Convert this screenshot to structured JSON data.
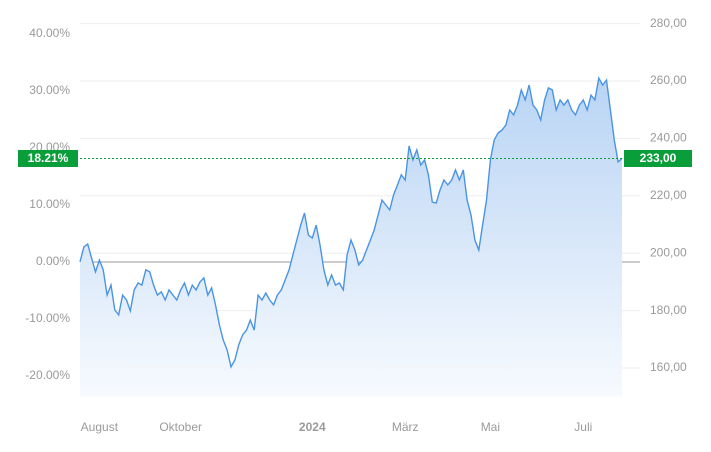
{
  "chart_data": {
    "type": "line",
    "series": [
      {
        "color": "#4a94e4",
        "axis": "y2",
        "values": [
          197,
          202.2,
          203.2,
          198.3,
          193.5,
          197.6,
          194.2,
          185.4,
          188.9,
          180.2,
          178.5,
          185.4,
          183.7,
          179.9,
          187.2,
          189.6,
          188.9,
          194.2,
          193.5,
          188.9,
          185.4,
          186.5,
          183.7,
          187.2,
          185.4,
          183.7,
          187.2,
          189.6,
          185.4,
          188.9,
          187.2,
          190,
          191.4,
          185.4,
          187.9,
          182,
          175,
          169.8,
          166.3,
          160.4,
          162.8,
          168,
          171.5,
          173.2,
          176.7,
          173.2,
          185.4,
          183.7,
          186.1,
          183.7,
          182,
          185.4,
          187.2,
          190.7,
          194.2,
          199.4,
          204.6,
          209.8,
          214,
          206.3,
          205.3,
          209.8,
          202.9,
          194.2,
          188.9,
          192.4,
          188.9,
          189.6,
          187.2,
          199.4,
          204.6,
          201.1,
          195.9,
          197.6,
          201.1,
          204.6,
          208.1,
          213.3,
          218.5,
          216.8,
          215.1,
          220.3,
          223.8,
          227.3,
          225.5,
          237.4,
          232.5,
          236,
          230.7,
          232.5,
          227.3,
          217.8,
          217.5,
          222,
          225.5,
          223.8,
          225.5,
          229,
          225.5,
          229,
          218.5,
          213.3,
          204.6,
          201.1,
          209.8,
          218.5,
          232.5,
          239.4,
          241.9,
          242.9,
          244.7,
          249.9,
          248.2,
          251.6,
          256.9,
          253.4,
          258.6,
          251.6,
          249.9,
          246.4,
          253.4,
          257.6,
          256.9,
          249.9,
          253.4,
          251.6,
          253.4,
          249.9,
          248.2,
          251.6,
          253.4,
          249.9,
          255.1,
          253.4,
          261,
          258.6,
          260.3,
          249.9,
          239.4,
          231.8,
          233
        ]
      }
    ],
    "xticks": [
      {
        "value": 5,
        "label": "August"
      },
      {
        "value": 26,
        "label": "Oktober"
      },
      {
        "value": 60,
        "label": "2024"
      },
      {
        "value": 84,
        "label": "März"
      },
      {
        "value": 106,
        "label": "Mai"
      },
      {
        "value": 130,
        "label": "Juli"
      }
    ],
    "ylim": [
      -23.63,
      41.82
    ],
    "yticks": [
      {
        "value": 40,
        "label": "40.00%"
      },
      {
        "value": 30,
        "label": "30.00%"
      },
      {
        "value": 20,
        "label": "20.00%"
      },
      {
        "value": 10,
        "label": "10.00%"
      },
      {
        "value": 0,
        "label": "0.00%"
      },
      {
        "value": -10,
        "label": "-10.00%"
      },
      {
        "value": -20,
        "label": "-20.00%"
      }
    ],
    "y2lim": [
      150,
      280
    ],
    "y2ticks": [
      {
        "value": 280,
        "label": "280,00"
      },
      {
        "value": 260,
        "label": "260,00"
      },
      {
        "value": 240,
        "label": "240,00"
      },
      {
        "value": 220,
        "label": "220,00"
      },
      {
        "value": 200,
        "label": "200,00"
      },
      {
        "value": 180,
        "label": "180,00"
      },
      {
        "value": 160,
        "label": "160,00"
      }
    ],
    "current_change": {
      "value": 18.21,
      "label": "18.21%"
    },
    "current_price": {
      "value": 233,
      "label": "233,00"
    },
    "reference_color": "#0a9e3a",
    "grid": true
  }
}
